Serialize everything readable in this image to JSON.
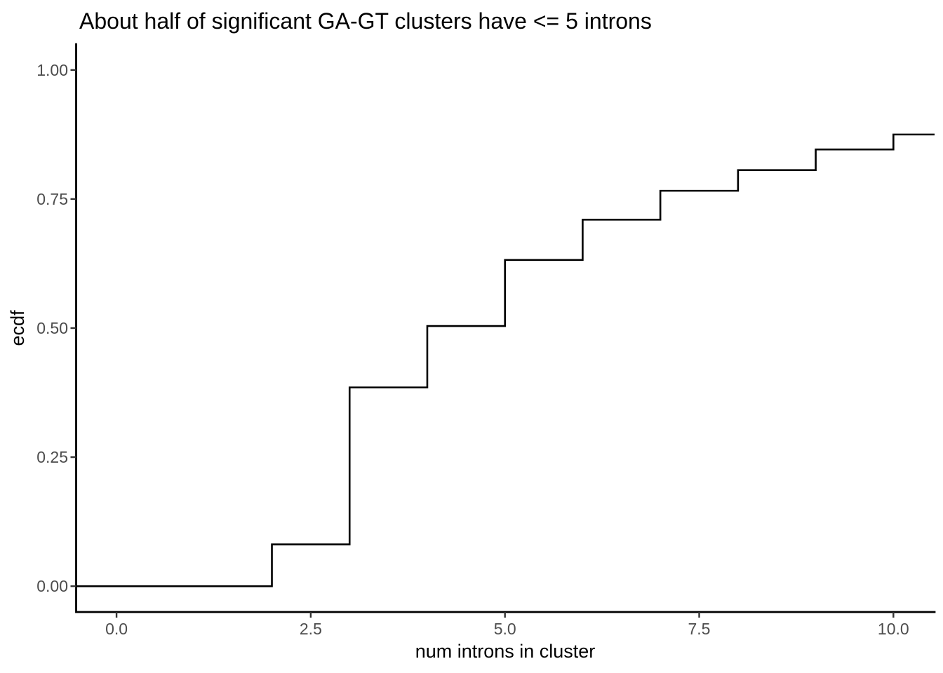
{
  "figure": {
    "background_color": "#FFFFFF"
  },
  "chart_data": {
    "type": "line",
    "subtype": "ecdf-step",
    "title": "About half of significant GA-GT clusters have <= 5 introns",
    "xlabel": "num introns in cluster",
    "ylabel": "ecdf",
    "xlim": [
      -0.52,
      10.53
    ],
    "ylim": [
      -0.05,
      1.05
    ],
    "grid": false,
    "legend": "none",
    "x_ticks": {
      "values": [
        0,
        2.5,
        5,
        7.5,
        10
      ],
      "labels": [
        "0.0",
        "2.5",
        "5.0",
        "7.5",
        "10.0"
      ]
    },
    "y_ticks": {
      "values": [
        0,
        0.25,
        0.5,
        0.75,
        1
      ],
      "labels": [
        "0.00",
        "0.25",
        "0.50",
        "0.75",
        "1.00"
      ]
    },
    "start_level": 0,
    "steps": [
      {
        "x": 2,
        "ecdf": 0.081
      },
      {
        "x": 3,
        "ecdf": 0.385
      },
      {
        "x": 4,
        "ecdf": 0.504
      },
      {
        "x": 5,
        "ecdf": 0.632
      },
      {
        "x": 6,
        "ecdf": 0.71
      },
      {
        "x": 7,
        "ecdf": 0.766
      },
      {
        "x": 8,
        "ecdf": 0.806
      },
      {
        "x": 9,
        "ecdf": 0.846
      },
      {
        "x": 10,
        "ecdf": 0.875
      }
    ],
    "colors": {
      "line": "#000000",
      "axis_line": "#000000",
      "tick_mark": "#333333",
      "tick_label": "#4D4D4D",
      "title": "#000000",
      "axis_title": "#000000"
    }
  }
}
